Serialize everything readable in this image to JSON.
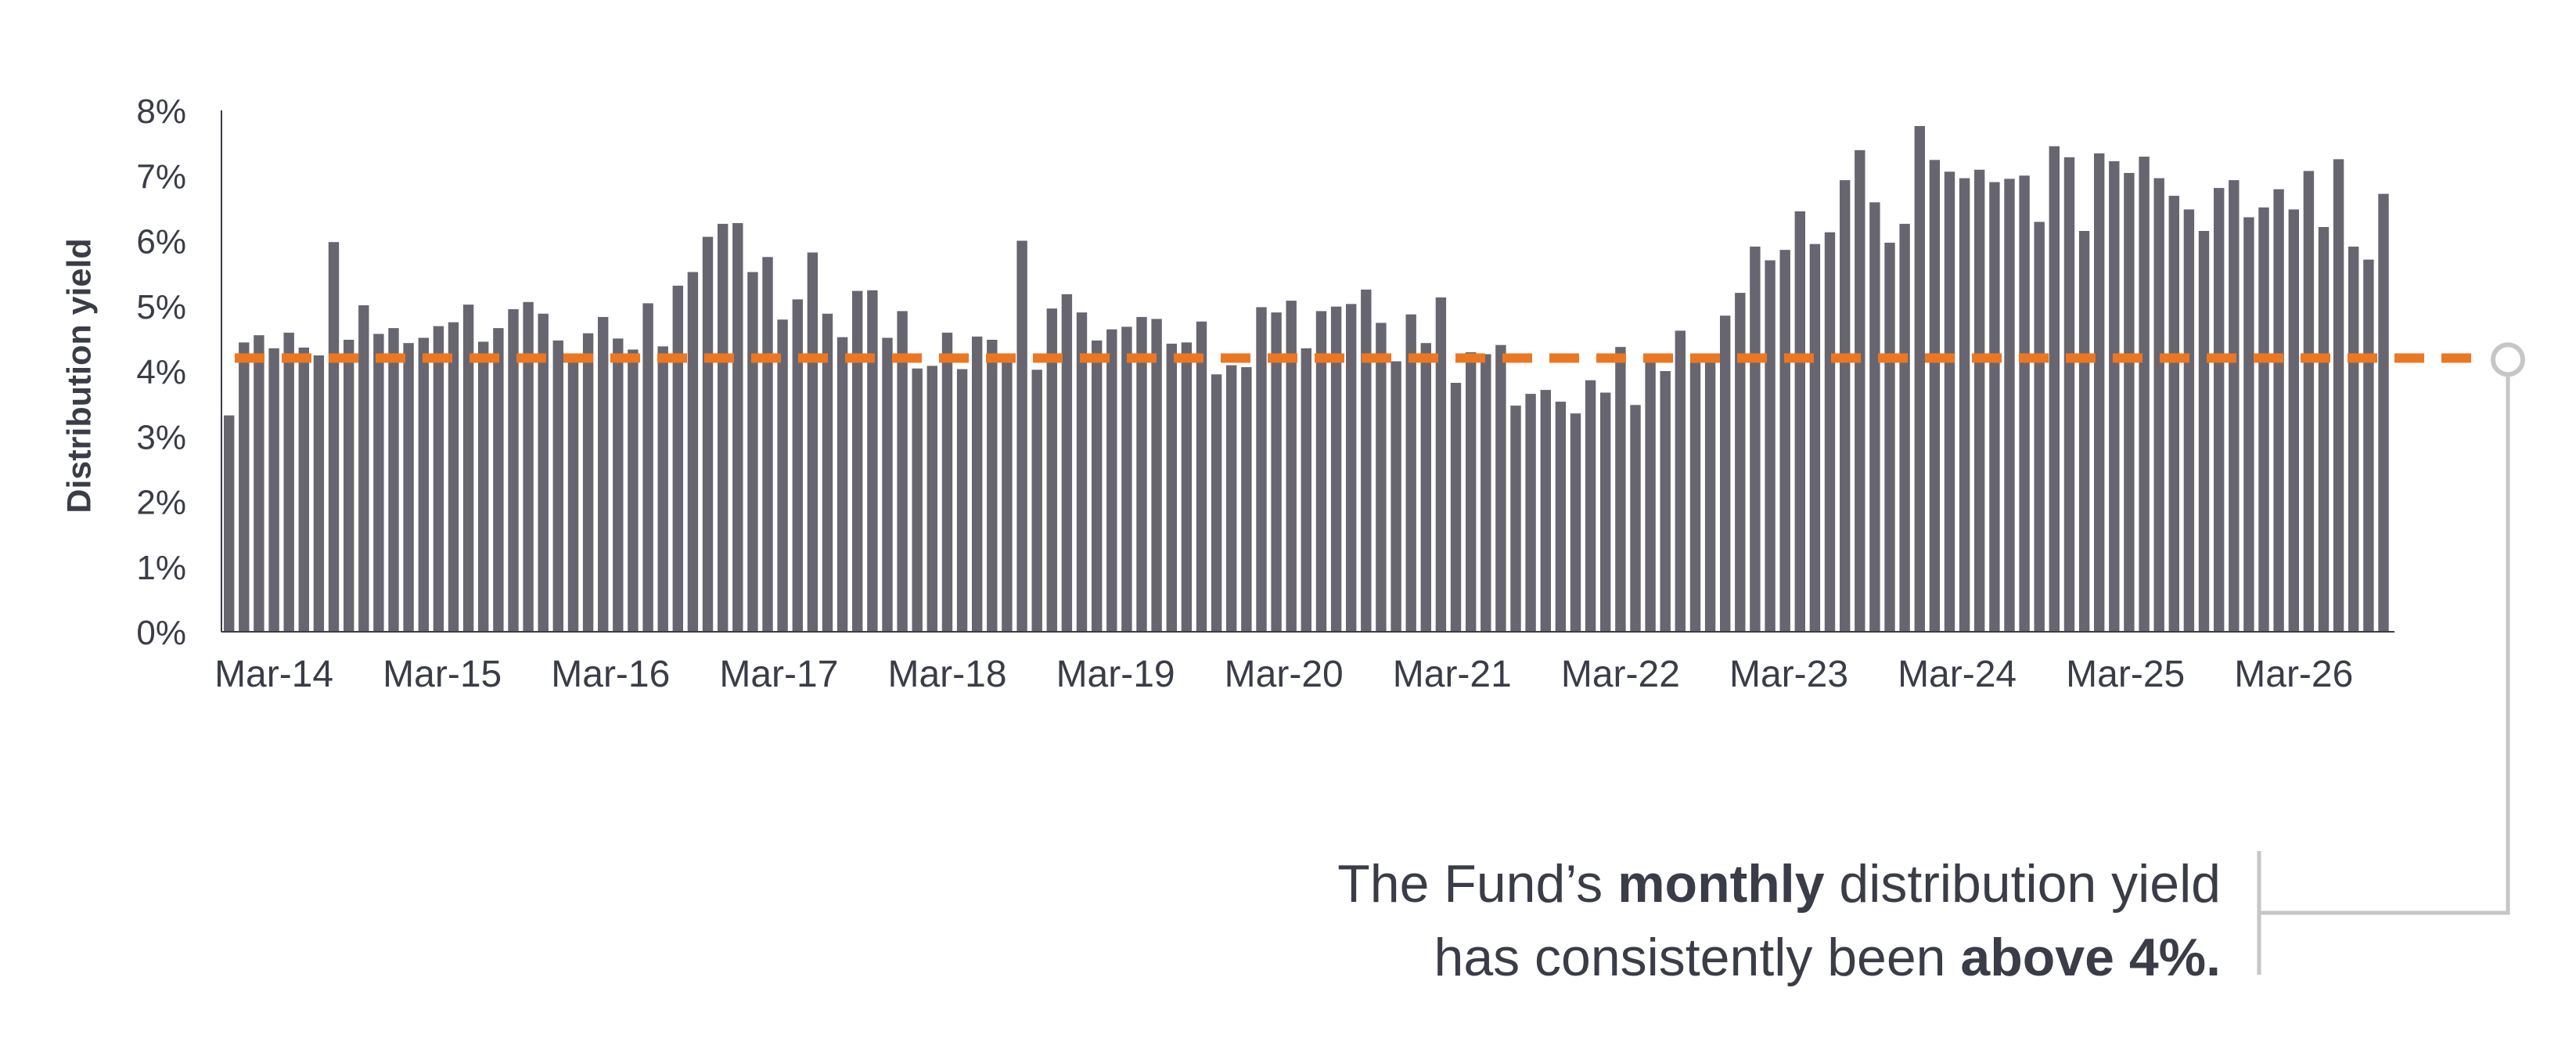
{
  "chart_data": {
    "type": "bar",
    "title": "",
    "xlabel": "",
    "ylabel": "Distribution yield",
    "ylim": [
      0,
      8
    ],
    "yticks": [
      "0%",
      "1%",
      "2%",
      "3%",
      "4%",
      "5%",
      "6%",
      "7%",
      "8%"
    ],
    "xtick_labels": [
      "Mar-14",
      "Mar-15",
      "Mar-16",
      "Mar-17",
      "Mar-18",
      "Mar-19",
      "Mar-20",
      "Mar-21",
      "Mar-22",
      "Mar-23",
      "Mar-24",
      "Mar-25",
      "Mar-26"
    ],
    "grid": false,
    "bar_color": "#676670",
    "reference_line": {
      "value": 4.2,
      "style": "dashed",
      "color": "#ec7722"
    },
    "values": [
      3.32,
      4.44,
      4.55,
      4.35,
      4.59,
      4.36,
      4.24,
      5.98,
      4.48,
      5.01,
      4.57,
      4.66,
      4.43,
      4.51,
      4.69,
      4.75,
      5.02,
      4.45,
      4.66,
      4.95,
      5.06,
      4.88,
      4.47,
      4.22,
      4.58,
      4.83,
      4.5,
      4.33,
      5.04,
      4.38,
      5.31,
      5.52,
      6.06,
      6.26,
      6.27,
      5.52,
      5.75,
      4.79,
      5.1,
      5.82,
      4.88,
      4.52,
      5.23,
      5.24,
      4.51,
      4.92,
      4.04,
      4.08,
      4.59,
      4.03,
      4.53,
      4.48,
      4.17,
      6.0,
      4.02,
      4.96,
      5.18,
      4.9,
      4.47,
      4.64,
      4.68,
      4.83,
      4.8,
      4.42,
      4.44,
      4.76,
      3.95,
      4.09,
      4.06,
      4.98,
      4.9,
      5.08,
      4.35,
      4.92,
      4.99,
      5.03,
      5.25,
      4.74,
      4.15,
      4.87,
      4.43,
      5.13,
      3.82,
      4.29,
      4.26,
      4.4,
      3.47,
      3.65,
      3.71,
      3.53,
      3.35,
      3.86,
      3.67,
      4.37,
      3.48,
      4.15,
      4.0,
      4.62,
      4.13,
      4.23,
      4.85,
      5.2,
      5.91,
      5.7,
      5.86,
      6.45,
      5.95,
      6.13,
      6.93,
      7.39,
      6.59,
      5.97,
      6.26,
      7.76,
      7.24,
      7.06,
      6.96,
      7.09,
      6.9,
      6.95,
      7.0,
      6.29,
      7.45,
      7.28,
      6.15,
      7.34,
      7.22,
      7.04,
      7.29,
      6.96,
      6.69,
      6.48,
      6.15,
      6.81,
      6.93,
      6.36,
      6.51,
      6.79,
      6.48,
      7.07,
      6.21,
      7.25,
      5.91,
      5.71,
      6.72
    ]
  },
  "annotation": {
    "line1_pre": "The Fund’s ",
    "line1_bold": "monthly",
    "line1_post": " distribution yield",
    "line2_pre": "has consistently been ",
    "line2_bold": "above 4%."
  },
  "colors": {
    "text": "#3a3d47",
    "bar": "#676670",
    "accent": "#ec7722",
    "callout": "#c6c6c8"
  }
}
